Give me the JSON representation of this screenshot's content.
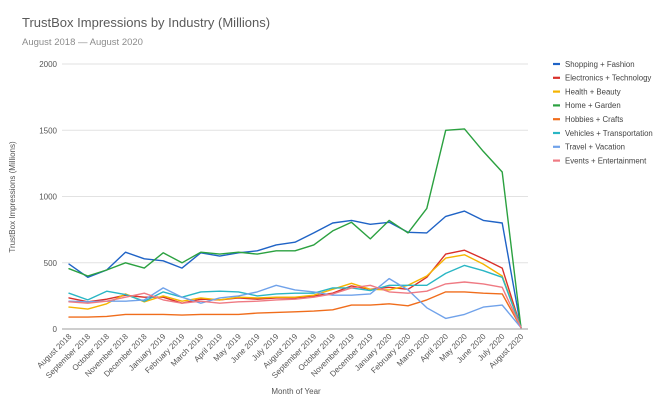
{
  "chart_data": {
    "type": "line",
    "title": "TrustBox Impressions by Industry (Millions)",
    "subtitle": "August 2018 — August 2020",
    "xlabel": "Month of Year",
    "ylabel": "TrustBox Impressions (Millions)",
    "ylim": [
      0,
      2000
    ],
    "yticks": [
      0,
      500,
      1000,
      1500,
      2000
    ],
    "grid": true,
    "legend": "right",
    "categories": [
      "August 2018",
      "September 2018",
      "October 2018",
      "November 2018",
      "December 2018",
      "January 2019",
      "February 2019",
      "March 2019",
      "April 2019",
      "May 2019",
      "June 2019",
      "July 2019",
      "August 2019",
      "September 2019",
      "October 2019",
      "November 2019",
      "December 2019",
      "January 2020",
      "February 2020",
      "March 2020",
      "April 2020",
      "May 2020",
      "June 2020",
      "July 2020",
      "August 2020"
    ],
    "series": [
      {
        "name": "Shopping + Fashion",
        "color": "#1f63c6",
        "values": [
          490,
          390,
          445,
          580,
          530,
          515,
          460,
          575,
          550,
          575,
          590,
          635,
          655,
          725,
          800,
          820,
          790,
          805,
          730,
          725,
          850,
          890,
          820,
          800,
          10
        ]
      },
      {
        "name": "Electronics + Technology",
        "color": "#d9302a",
        "values": [
          235,
          205,
          225,
          255,
          240,
          240,
          195,
          225,
          220,
          235,
          225,
          235,
          235,
          250,
          270,
          325,
          300,
          315,
          300,
          390,
          565,
          595,
          530,
          460,
          10
        ]
      },
      {
        "name": "Health + Beauty",
        "color": "#f5b400",
        "values": [
          165,
          150,
          190,
          265,
          205,
          250,
          210,
          235,
          220,
          240,
          235,
          240,
          240,
          255,
          300,
          345,
          300,
          295,
          330,
          400,
          535,
          560,
          490,
          400,
          10
        ]
      },
      {
        "name": "Home + Garden",
        "color": "#2ba140",
        "values": [
          455,
          400,
          445,
          500,
          460,
          575,
          500,
          580,
          565,
          580,
          565,
          590,
          590,
          635,
          740,
          805,
          680,
          820,
          725,
          910,
          1500,
          1510,
          1340,
          1185,
          10
        ]
      },
      {
        "name": "Hobbies + Crafts",
        "color": "#f06d1c",
        "values": [
          90,
          90,
          95,
          110,
          110,
          110,
          105,
          110,
          110,
          110,
          120,
          125,
          130,
          135,
          145,
          180,
          180,
          190,
          175,
          220,
          280,
          280,
          270,
          265,
          10
        ]
      },
      {
        "name": "Vehicles + Transportation",
        "color": "#2ab6c4",
        "values": [
          270,
          220,
          285,
          260,
          210,
          280,
          240,
          280,
          285,
          280,
          250,
          265,
          270,
          270,
          310,
          310,
          290,
          330,
          330,
          330,
          420,
          480,
          440,
          390,
          10
        ]
      },
      {
        "name": "Travel + Vacation",
        "color": "#70a2ea",
        "values": [
          210,
          205,
          210,
          210,
          220,
          310,
          240,
          195,
          235,
          250,
          280,
          330,
          295,
          280,
          255,
          255,
          265,
          380,
          295,
          160,
          80,
          110,
          165,
          180,
          10
        ]
      },
      {
        "name": "Events + Entertainment",
        "color": "#ef7a83",
        "values": [
          205,
          195,
          210,
          240,
          270,
          220,
          195,
          210,
          195,
          205,
          210,
          220,
          225,
          240,
          265,
          310,
          330,
          280,
          270,
          285,
          340,
          355,
          340,
          315,
          10
        ]
      }
    ]
  }
}
